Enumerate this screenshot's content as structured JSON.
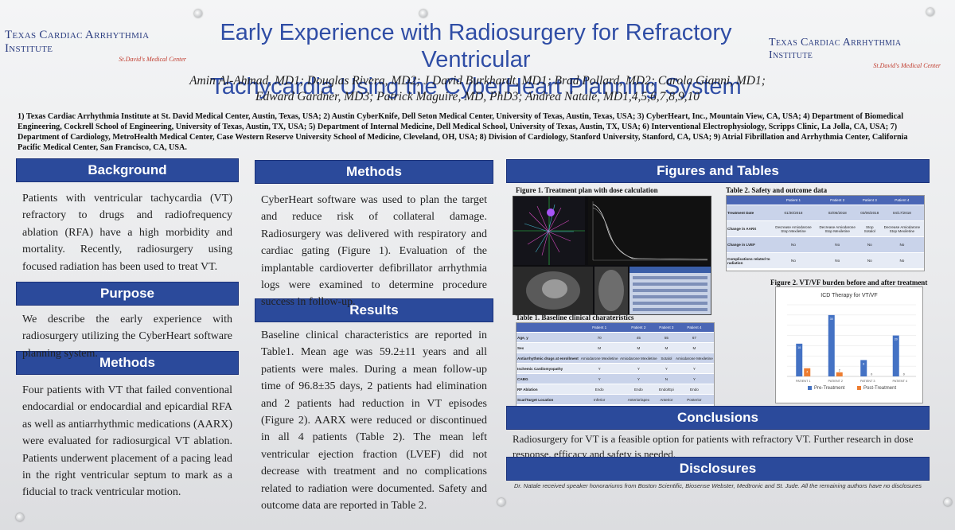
{
  "logo": {
    "name": "Texas Cardiac Arrhythmia Institute",
    "sub": "St.David's Medical Center"
  },
  "title": {
    "line1": "Early Experience with Radiosurgery for Refractory Ventricular",
    "line2": "Tachycardia Using the CyberHeart Planning System"
  },
  "authors": {
    "line1": "Amin Al-Ahmad, MD1; Douglas Rivera, MD2; J David Burkhardt, MD1; Brad Pollard, MD2; Carola Gianni, MD1;",
    "line2": "Edward Gardner, MD3; Patrick Maguire, MD, PhD3; Andrea Natale, MD1,4,5,6,7,8,9,10"
  },
  "affiliations": "1) Texas Cardiac Arrhythmia Institute at St. David Medical Center, Austin, Texas, USA; 2) Austin CyberKnife, Dell Seton Medical Center, University of Texas, Austin, Texas, USA; 3) CyberHeart, Inc., Mountain View, CA, USA; 4) Department of Biomedical Engineering, Cockrell School of Engineering, University of Texas, Austin, TX, USA; 5) Department of Internal Medicine, Dell Medical School, University of Texas, Austin, TX, USA; 6) Interventional Electrophysiology, Scripps Clinic, La Jolla, CA, USA; 7) Department of Cardiology, MetroHealth Medical Center, Case Western Reserve University School of Medicine, Cleveland, OH, USA; 8) Division of Cardiology, Stanford University, Stanford, CA, USA; 9) Atrial Fibrillation and Arrhythmia Center, California Pacific Medical Center, San Francisco, CA, USA.",
  "col1": {
    "background_h": "Background",
    "background": "Patients with ventricular tachycardia (VT) refractory to drugs and radiofrequency ablation (RFA) have a high morbidity and mortality. Recently, radiosurgery using focused radiation has been used to treat VT.",
    "purpose_h": "Purpose",
    "purpose": "We describe the early experience with radiosurgery utilizing the CyberHeart software planning system.",
    "methods_h": "Methods",
    "methods": "Four patients with VT that failed conventional endocardial or endocardial and epicardial RFA as well as antiarrhythmic medications (AARX) were evaluated for radiosurgical VT ablation. Patients underwent placement of a pacing lead in the right ventricular septum to mark as a fiducial to track ventricular motion."
  },
  "col2": {
    "methods_h": "Methods",
    "methods": "CyberHeart software was used to plan the target and reduce risk of collateral damage. Radiosurgery was delivered with respiratory and cardiac gating (Figure 1). Evaluation of the implantable cardioverter defibrillator arrhythmia logs were examined to determine procedure success in follow-up.",
    "results_h": "Results",
    "results": "Baseline clinical characteristics are reported in Table1. Mean age was 59.2±11 years and all patients were males. During a mean follow-up time of 96.8±35 days, 2 patients had elimination and 2 patients had reduction in VT episodes (Figure 2). AARX were reduced or discontinued in all 4 patients (Table 2). The mean left ventricular ejection fraction (LVEF) did not decrease with treatment and no complications related to radiation were documented. Safety and outcome data are reported in Table 2."
  },
  "col3": {
    "figures_h": "Figures and Tables",
    "fig1_title": "Figure 1. Treatment plan with dose calculation",
    "table2_title": "Table 2. Safety and outcome data",
    "table1_title": "Table 1. Baseline clinical charateristics",
    "fig2_title": "Figure 2. VT/VF burden before and after treatment",
    "conclusions_h": "Conclusions",
    "conclusions": "Radiosurgery for VT is a feasible option for patients with refractory VT. Further research in dose response, efficacy and safety is needed.",
    "disclosures_h": "Disclosures",
    "disclosures": "Dr. Natale received speaker honorariums from Boston Scientific, Biosense Webster, Medtronic and St. Jude. All the remaining authors have no disclosures"
  },
  "table2": {
    "headers": [
      "",
      "Patient 1",
      "Patient 2",
      "Patient 3",
      "Patient 4"
    ],
    "rows": [
      [
        "Treatment Date",
        "01/30/2018",
        "02/06/2018",
        "03/06/2018",
        "04/17/2018"
      ],
      [
        "Change in AARX",
        "Decrease Amiodarone Stop Mexiletine",
        "Decrease Amiodarone Stop Mexiletine",
        "Stop Sotalol",
        "Decrease Amiodarone Stop Mexiletine"
      ],
      [
        "Change in LVEF",
        "No",
        "No",
        "No",
        "No"
      ],
      [
        "Complications related to radiation",
        "No",
        "No",
        "No",
        "No"
      ]
    ]
  },
  "table1": {
    "headers": [
      "",
      "Patient 1",
      "Patient 2",
      "Patient 3",
      "Patient 4"
    ],
    "rows": [
      [
        "Age, y",
        "70",
        "45",
        "55",
        "67"
      ],
      [
        "Sex",
        "M",
        "M",
        "M",
        "M"
      ],
      [
        "Antiarrhythmic drugs at enrollment",
        "Amiodarone Mexiletine",
        "Amiodarone Mexiletine",
        "Sotalol",
        "Amiodarone Mexiletine"
      ],
      [
        "Ischemic Cardiomyopathy",
        "Y",
        "Y",
        "Y",
        "Y"
      ],
      [
        "CABG",
        "Y",
        "Y",
        "N",
        "Y"
      ],
      [
        "RF Ablation",
        "Endo",
        "Endo",
        "Endo/Epi",
        "Endo"
      ],
      [
        "Scar/Target Location",
        "Inferior",
        "Anterior/apex",
        "Anterior",
        "Posterior"
      ]
    ]
  },
  "chart_data": {
    "type": "bar",
    "title": "ICD Therapy for VT/VF",
    "categories": [
      "PATIENT 1",
      "PATIENT 2",
      "PATIENT 3",
      "PATIENT 4"
    ],
    "series": [
      {
        "name": "Pre-Treatment",
        "values": [
          16,
          30,
          8,
          20
        ],
        "color": "#4472c4"
      },
      {
        "name": "Post-Treatment",
        "values": [
          4,
          2,
          0,
          0
        ],
        "color": "#ed7d31"
      }
    ],
    "ylim": [
      0,
      35
    ],
    "legend": "bottom",
    "show_data_labels": true,
    "grid": true
  },
  "colors": {
    "header_blue": "#2b4a9b",
    "title_blue": "#2f4da5"
  }
}
